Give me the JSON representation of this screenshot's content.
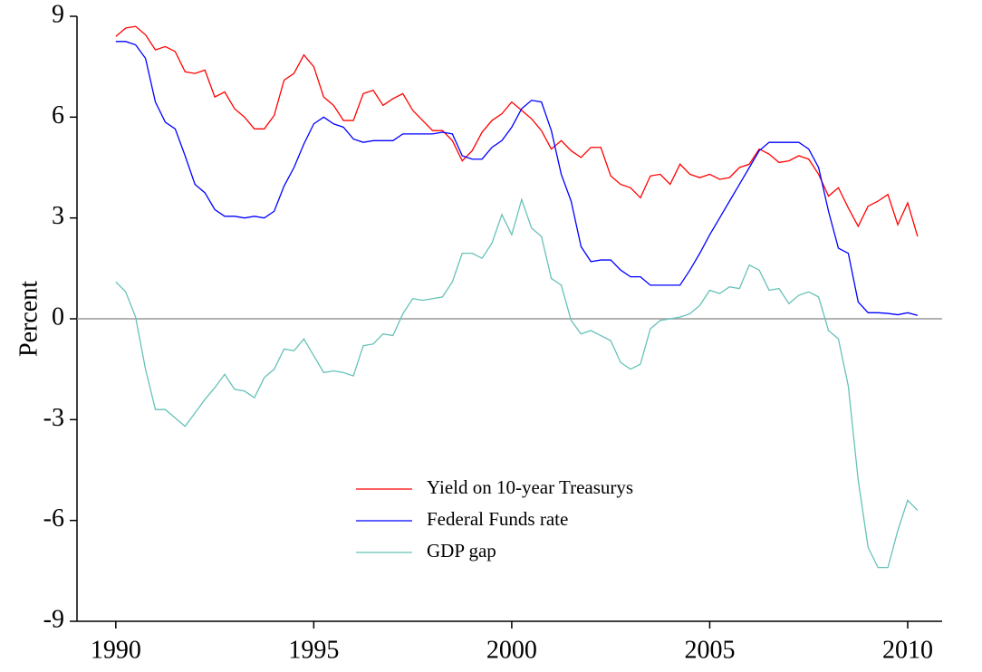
{
  "chart_data": {
    "type": "line",
    "ylabel": "Percent",
    "x": [
      1990,
      1990.25,
      1990.5,
      1990.75,
      1991,
      1991.25,
      1991.5,
      1991.75,
      1992,
      1992.25,
      1992.5,
      1992.75,
      1993,
      1993.25,
      1993.5,
      1993.75,
      1994,
      1994.25,
      1994.5,
      1994.75,
      1995,
      1995.25,
      1995.5,
      1995.75,
      1996,
      1996.25,
      1996.5,
      1996.75,
      1997,
      1997.25,
      1997.5,
      1997.75,
      1998,
      1998.25,
      1998.5,
      1998.75,
      1999,
      1999.25,
      1999.5,
      1999.75,
      2000,
      2000.25,
      2000.5,
      2000.75,
      2001,
      2001.25,
      2001.5,
      2001.75,
      2002,
      2002.25,
      2002.5,
      2002.75,
      2003,
      2003.25,
      2003.5,
      2003.75,
      2004,
      2004.25,
      2004.5,
      2004.75,
      2005,
      2005.25,
      2005.5,
      2005.75,
      2006,
      2006.25,
      2006.5,
      2006.75,
      2007,
      2007.25,
      2007.5,
      2007.75,
      2008,
      2008.25,
      2008.5,
      2008.75,
      2009,
      2009.25,
      2009.5,
      2009.75,
      2010,
      2010.25
    ],
    "series": [
      {
        "name": "Yield on 10-year Treasurys",
        "color": "#ff0000",
        "values": [
          8.4,
          8.65,
          8.7,
          8.45,
          8.0,
          8.1,
          7.95,
          7.35,
          7.3,
          7.4,
          6.6,
          6.75,
          6.25,
          6.0,
          5.65,
          5.65,
          6.05,
          7.1,
          7.3,
          7.85,
          7.5,
          6.6,
          6.35,
          5.9,
          5.9,
          6.7,
          6.8,
          6.35,
          6.55,
          6.7,
          6.2,
          5.9,
          5.6,
          5.6,
          5.3,
          4.7,
          5.0,
          5.55,
          5.9,
          6.1,
          6.45,
          6.2,
          5.95,
          5.6,
          5.05,
          5.3,
          5.0,
          4.8,
          5.1,
          5.1,
          4.25,
          4.0,
          3.9,
          3.6,
          4.25,
          4.3,
          4.0,
          4.6,
          4.3,
          4.2,
          4.3,
          4.15,
          4.2,
          4.5,
          4.6,
          5.05,
          4.9,
          4.65,
          4.7,
          4.85,
          4.75,
          4.3,
          3.65,
          3.9,
          3.3,
          2.75,
          3.35,
          3.5,
          3.7,
          2.8,
          3.45,
          2.45
        ]
      },
      {
        "name": "Federal Funds rate",
        "color": "#0000ff",
        "values": [
          8.25,
          8.25,
          8.15,
          7.75,
          6.45,
          5.85,
          5.65,
          4.85,
          4.0,
          3.75,
          3.25,
          3.05,
          3.05,
          3.0,
          3.05,
          3.0,
          3.2,
          3.95,
          4.5,
          5.2,
          5.8,
          6.0,
          5.8,
          5.7,
          5.35,
          5.25,
          5.3,
          5.3,
          5.3,
          5.5,
          5.5,
          5.5,
          5.5,
          5.55,
          5.5,
          4.85,
          4.75,
          4.75,
          5.1,
          5.3,
          5.7,
          6.25,
          6.5,
          6.45,
          5.6,
          4.3,
          3.5,
          2.15,
          1.7,
          1.75,
          1.75,
          1.45,
          1.25,
          1.25,
          1.0,
          1.0,
          1.0,
          1.0,
          1.45,
          1.95,
          2.5,
          3.0,
          3.5,
          4.0,
          4.5,
          5.0,
          5.25,
          5.25,
          5.25,
          5.25,
          5.05,
          4.5,
          3.2,
          2.1,
          1.95,
          0.5,
          0.18,
          0.18,
          0.16,
          0.12,
          0.18,
          0.1
        ]
      },
      {
        "name": "GDP gap",
        "color": "#66c2b8",
        "values": [
          1.1,
          0.8,
          0.05,
          -1.5,
          -2.7,
          -2.7,
          -2.95,
          -3.2,
          -2.8,
          -2.4,
          -2.05,
          -1.65,
          -2.1,
          -2.15,
          -2.35,
          -1.75,
          -1.5,
          -0.9,
          -0.95,
          -0.6,
          -1.1,
          -1.6,
          -1.55,
          -1.6,
          -1.7,
          -0.8,
          -0.75,
          -0.45,
          -0.5,
          0.15,
          0.6,
          0.55,
          0.6,
          0.65,
          1.1,
          1.95,
          1.95,
          1.8,
          2.25,
          3.1,
          2.5,
          3.55,
          2.7,
          2.45,
          1.2,
          1.0,
          -0.05,
          -0.45,
          -0.35,
          -0.5,
          -0.65,
          -1.3,
          -1.5,
          -1.35,
          -0.3,
          -0.05,
          0,
          0.05,
          0.15,
          0.4,
          0.85,
          0.75,
          0.95,
          0.9,
          1.6,
          1.45,
          0.85,
          0.9,
          0.45,
          0.7,
          0.8,
          0.65,
          -0.35,
          -0.6,
          -2.0,
          -4.8,
          -6.8,
          -7.4,
          -7.4,
          -6.3,
          -5.4,
          -5.7
        ]
      }
    ],
    "xlim": [
      1989.02,
      2010.87
    ],
    "xticks": [
      1990,
      1995,
      2000,
      2005,
      2010
    ],
    "ylim": [
      -9,
      9
    ],
    "yticks": [
      -9,
      -6,
      -3,
      0,
      3,
      6,
      9
    ],
    "reference_line": 0,
    "reference_color": "#999999",
    "legend": "lower center",
    "grid": false
  }
}
